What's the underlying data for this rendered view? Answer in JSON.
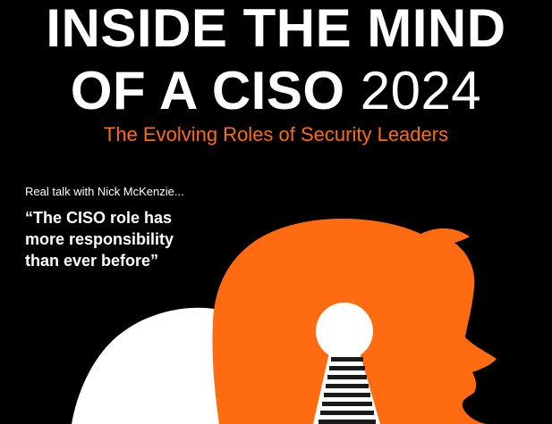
{
  "cover": {
    "title_line1": "INSIDE THE MIND",
    "title_line2_bold": "OF A CISO",
    "title_year": "2024",
    "subtitle": "The Evolving Roles of Security Leaders",
    "intro": "Real talk with Nick McKenzie...",
    "quote_lines": [
      "“The CISO role has",
      "more responsibility",
      "than ever before”"
    ]
  },
  "colors": {
    "background": "#000000",
    "accent": "#ff6b10",
    "text": "#ffffff"
  },
  "art": {
    "icons": [
      "orange-head-silhouette",
      "white-head-silhouette",
      "keyhole-icon",
      "staircase-icon"
    ]
  }
}
